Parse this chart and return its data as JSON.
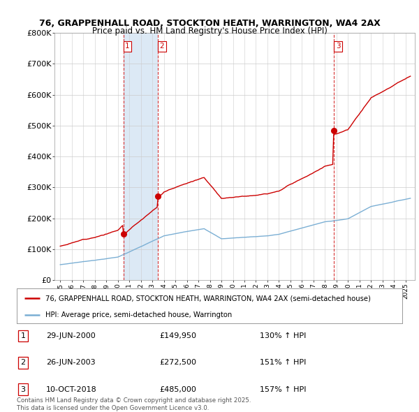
{
  "title_line1": "76, GRAPPENHALL ROAD, STOCKTON HEATH, WARRINGTON, WA4 2AX",
  "title_line2": "Price paid vs. HM Land Registry's House Price Index (HPI)",
  "ylim": [
    0,
    800000
  ],
  "yticks": [
    0,
    100000,
    200000,
    300000,
    400000,
    500000,
    600000,
    700000,
    800000
  ],
  "ytick_labels": [
    "£0",
    "£100K",
    "£200K",
    "£300K",
    "£400K",
    "£500K",
    "£600K",
    "£700K",
    "£800K"
  ],
  "sale_color": "#cc0000",
  "hpi_color": "#7bafd4",
  "hpi_fill_color": "#dce9f5",
  "vline_color": "#cc0000",
  "background_color": "#ffffff",
  "grid_color": "#cccccc",
  "legend_label_sale": "76, GRAPPENHALL ROAD, STOCKTON HEATH, WARRINGTON, WA4 2AX (semi-detached house)",
  "legend_label_hpi": "HPI: Average price, semi-detached house, Warrington",
  "transactions": [
    {
      "num": 1,
      "date": "29-JUN-2000",
      "price": 149950,
      "pct": "130%",
      "year": 2000.49
    },
    {
      "num": 2,
      "date": "26-JUN-2003",
      "price": 272500,
      "pct": "151%",
      "year": 2003.49
    },
    {
      "num": 3,
      "date": "10-OCT-2018",
      "price": 485000,
      "pct": "157%",
      "year": 2018.78
    }
  ],
  "footnote": "Contains HM Land Registry data © Crown copyright and database right 2025.\nThis data is licensed under the Open Government Licence v3.0.",
  "table_rows": [
    {
      "num": "1",
      "date": "29-JUN-2000",
      "price": "£149,950",
      "pct": "130% ↑ HPI"
    },
    {
      "num": "2",
      "date": "26-JUN-2003",
      "price": "£272,500",
      "pct": "151% ↑ HPI"
    },
    {
      "num": "3",
      "date": "10-OCT-2018",
      "price": "£485,000",
      "pct": "157% ↑ HPI"
    }
  ]
}
